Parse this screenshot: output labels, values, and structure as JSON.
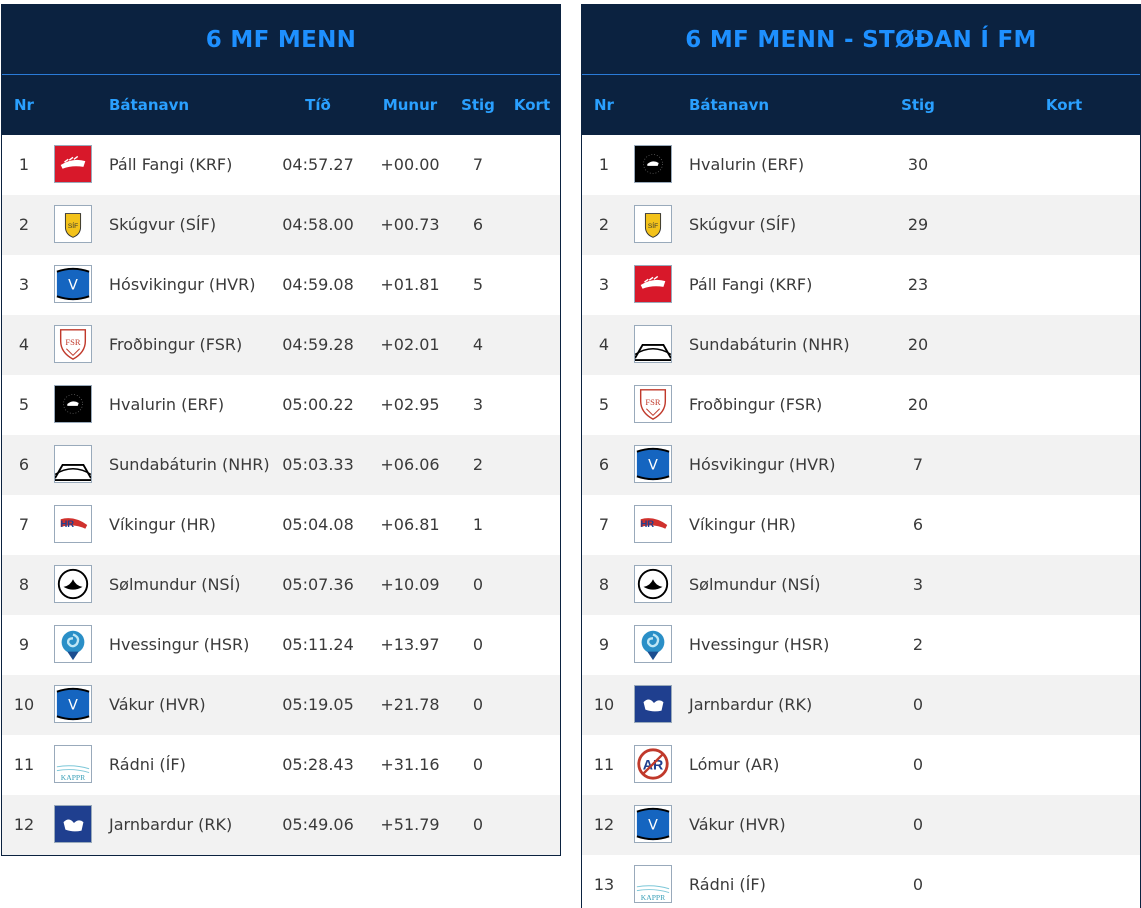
{
  "left": {
    "title": "6 MF MENN",
    "headers": {
      "nr": "Nr",
      "name": "Bátanavn",
      "time": "Tíð",
      "diff": "Munur",
      "points": "Stig",
      "map": "Kort"
    },
    "rows": [
      {
        "nr": "1",
        "logo": "krf-logo",
        "name": "Páll Fangi (KRF)",
        "time": "04:57.27",
        "diff": "+00.00",
        "points": "7"
      },
      {
        "nr": "2",
        "logo": "sif-logo",
        "name": "Skúgvur (SÍF)",
        "time": "04:58.00",
        "diff": "+00.73",
        "points": "6"
      },
      {
        "nr": "3",
        "logo": "hvr-logo",
        "name": "Hósvikingur (HVR)",
        "time": "04:59.08",
        "diff": "+01.81",
        "points": "5"
      },
      {
        "nr": "4",
        "logo": "fsr-logo",
        "name": "Froðbingur (FSR)",
        "time": "04:59.28",
        "diff": "+02.01",
        "points": "4"
      },
      {
        "nr": "5",
        "logo": "erf-logo",
        "name": "Hvalurin (ERF)",
        "time": "05:00.22",
        "diff": "+02.95",
        "points": "3"
      },
      {
        "nr": "6",
        "logo": "nhr-logo",
        "name": "Sundabáturin (NHR)",
        "time": "05:03.33",
        "diff": "+06.06",
        "points": "2"
      },
      {
        "nr": "7",
        "logo": "hr-logo",
        "name": "Víkingur (HR)",
        "time": "05:04.08",
        "diff": "+06.81",
        "points": "1"
      },
      {
        "nr": "8",
        "logo": "nsi-logo",
        "name": "Sølmundur (NSÍ)",
        "time": "05:07.36",
        "diff": "+10.09",
        "points": "0"
      },
      {
        "nr": "9",
        "logo": "hsr-logo",
        "name": "Hvessingur (HSR)",
        "time": "05:11.24",
        "diff": "+13.97",
        "points": "0"
      },
      {
        "nr": "10",
        "logo": "hvr-logo",
        "name": "Vákur (HVR)",
        "time": "05:19.05",
        "diff": "+21.78",
        "points": "0"
      },
      {
        "nr": "11",
        "logo": "if-logo",
        "name": "Rádni (ÍF)",
        "time": "05:28.43",
        "diff": "+31.16",
        "points": "0"
      },
      {
        "nr": "12",
        "logo": "rk-logo",
        "name": "Jarnbardur (RK)",
        "time": "05:49.06",
        "diff": "+51.79",
        "points": "0"
      }
    ]
  },
  "right": {
    "title": "6 MF MENN - STØÐAN Í FM",
    "headers": {
      "nr": "Nr",
      "name": "Bátanavn",
      "points": "Stig",
      "map": "Kort"
    },
    "rows": [
      {
        "nr": "1",
        "logo": "erf-logo",
        "name": "Hvalurin (ERF)",
        "points": "30"
      },
      {
        "nr": "2",
        "logo": "sif-logo",
        "name": "Skúgvur (SÍF)",
        "points": "29"
      },
      {
        "nr": "3",
        "logo": "krf-logo",
        "name": "Páll Fangi (KRF)",
        "points": "23"
      },
      {
        "nr": "4",
        "logo": "nhr-logo",
        "name": "Sundabáturin (NHR)",
        "points": "20"
      },
      {
        "nr": "5",
        "logo": "fsr-logo",
        "name": "Froðbingur (FSR)",
        "points": "20"
      },
      {
        "nr": "6",
        "logo": "hvr-logo",
        "name": "Hósvikingur (HVR)",
        "points": "7"
      },
      {
        "nr": "7",
        "logo": "hr-logo",
        "name": "Víkingur (HR)",
        "points": "6"
      },
      {
        "nr": "8",
        "logo": "nsi-logo",
        "name": "Sølmundur (NSÍ)",
        "points": "3"
      },
      {
        "nr": "9",
        "logo": "hsr-logo",
        "name": "Hvessingur (HSR)",
        "points": "2"
      },
      {
        "nr": "10",
        "logo": "rk-logo",
        "name": "Jarnbardur (RK)",
        "points": "0"
      },
      {
        "nr": "11",
        "logo": "ar-logo",
        "name": "Lómur (AR)",
        "points": "0"
      },
      {
        "nr": "12",
        "logo": "hvr-logo",
        "name": "Vákur (HVR)",
        "points": "0"
      },
      {
        "nr": "13",
        "logo": "if-logo",
        "name": "Rádni (ÍF)",
        "points": "0"
      }
    ]
  },
  "logo_text": {
    "sif-logo": "SÍF",
    "fsr-logo": "FSR",
    "hvr-logo": "V",
    "hr-logo": "HR",
    "if-logo": "KAPPR",
    "ar-logo": "AR"
  },
  "colors": {
    "header_bg": "#0b2240",
    "header_text": "#1e90ff",
    "row_alt": "#f2f2f2",
    "krf": "#d8182a",
    "hvr": "#1565c0",
    "rk": "#1f3f8f"
  }
}
